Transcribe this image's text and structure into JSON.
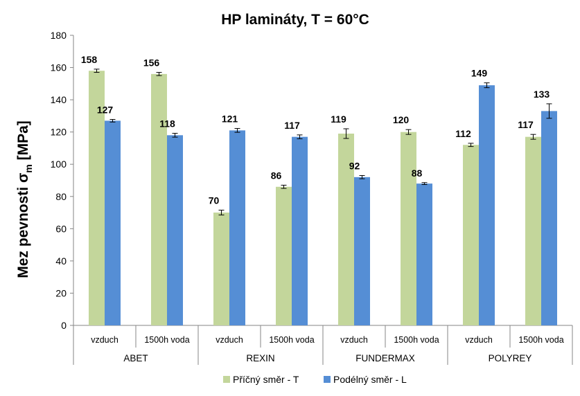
{
  "chart_data": {
    "type": "bar",
    "title": "HP lamináty, T = 60°C",
    "ylabel_main": "Mez pevnosti σ",
    "ylabel_sub": "m",
    "ylabel_unit": " [MPa]",
    "ylim": [
      0,
      180
    ],
    "yticks": [
      0,
      20,
      40,
      60,
      80,
      100,
      120,
      140,
      160,
      180
    ],
    "categories": [
      "vzduch",
      "1500h voda",
      "vzduch",
      "1500h voda",
      "vzduch",
      "1500h voda",
      "vzduch",
      "1500h voda"
    ],
    "groups": [
      "ABET",
      "REXIN",
      "FUNDERMAX",
      "POLYREY"
    ],
    "series": [
      {
        "name": "Příčný směr - T",
        "color": "#c3d69b",
        "values": [
          158,
          156,
          70,
          86,
          119,
          120,
          112,
          117
        ],
        "errors": [
          1,
          1,
          1.5,
          1,
          3,
          1.5,
          1,
          1.5
        ]
      },
      {
        "name": "Podélný směr - L",
        "color": "#558ed5",
        "values": [
          127,
          118,
          121,
          117,
          92,
          88,
          149,
          133
        ],
        "errors": [
          0.8,
          1.2,
          1.2,
          1.2,
          1,
          0.6,
          1.5,
          4.5
        ]
      }
    ],
    "grid": false,
    "legend_position": "bottom"
  }
}
